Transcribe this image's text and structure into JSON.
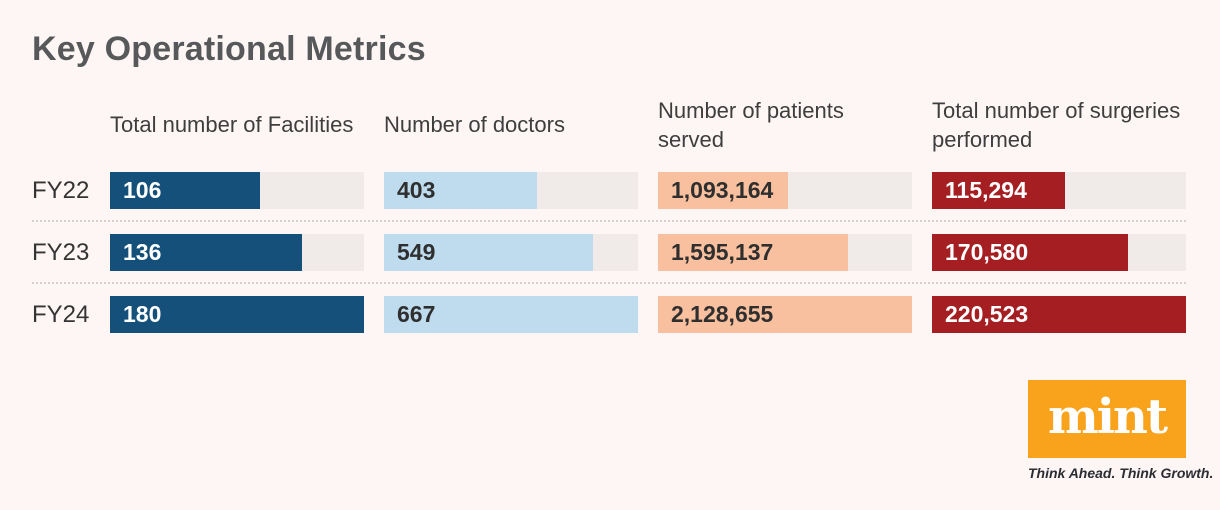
{
  "page": {
    "background": "#fdf6f5",
    "title": "Key Operational Metrics"
  },
  "chart_data": {
    "type": "bar",
    "orientation": "horizontal",
    "title": "Key Operational Metrics",
    "categories": [
      "FY22",
      "FY23",
      "FY24"
    ],
    "series": [
      {
        "name": "Total number of Facilities",
        "values": [
          106,
          136,
          180
        ],
        "labels": [
          "106",
          "136",
          "180"
        ],
        "bar_color": "#15507b",
        "label_color": "#ffffff"
      },
      {
        "name": "Number of doctors",
        "values": [
          403,
          549,
          667
        ],
        "labels": [
          "403",
          "549",
          "667"
        ],
        "bar_color": "#bedcee",
        "label_color": "#2f2f2f"
      },
      {
        "name": "Number of patients served",
        "values": [
          1093164,
          1595137,
          2128655
        ],
        "labels": [
          "1,093,164",
          "1,595,137",
          "2,128,655"
        ],
        "bar_color": "#f8c09e",
        "label_color": "#2f2f2f"
      },
      {
        "name": "Total number of surgeries performed",
        "values": [
          115294,
          170580,
          220523
        ],
        "labels": [
          "115,294",
          "170,580",
          "220,523"
        ],
        "bar_color": "#a51e22",
        "label_color": "#ffffff"
      }
    ],
    "track_color": "#f0ebe9",
    "scale": "bars scaled per column to FY24 maximum",
    "grid": "off",
    "legend": "none"
  },
  "logo": {
    "text": "mint",
    "tagline": "Think Ahead. Think Growth.",
    "box_color": "#f9a21b",
    "text_color": "#ffffff"
  }
}
